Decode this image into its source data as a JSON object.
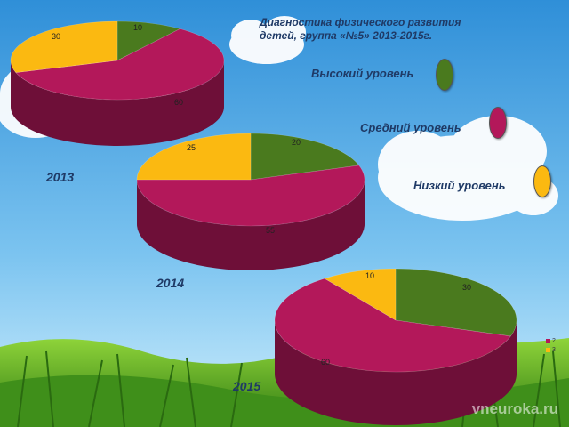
{
  "title": {
    "line1": "Диагностика физического развития",
    "line2": "детей, группа «№5» 2013-2015г."
  },
  "legend": [
    {
      "label": "Высокий уровень",
      "color": "#4a7a1e"
    },
    {
      "label": "Средний уровень",
      "color": "#b3185a"
    },
    {
      "label": "Низкий уровень",
      "color": "#fbb911"
    }
  ],
  "mini_legend": [
    "2",
    "3"
  ],
  "watermark": "vneuroka.ru",
  "chart_data": [
    {
      "type": "pie",
      "title": "2013",
      "categories": [
        "Высокий уровень",
        "Средний уровень",
        "Низкий уровень"
      ],
      "values": [
        10,
        60,
        30
      ]
    },
    {
      "type": "pie",
      "title": "2014",
      "categories": [
        "Высокий уровень",
        "Средний уровень",
        "Низкий уровень"
      ],
      "values": [
        20,
        55,
        25
      ]
    },
    {
      "type": "pie",
      "title": "2015",
      "categories": [
        "Высокий уровень",
        "Средний уровень",
        "Низкий уровень"
      ],
      "values": [
        30,
        60,
        10
      ]
    }
  ]
}
